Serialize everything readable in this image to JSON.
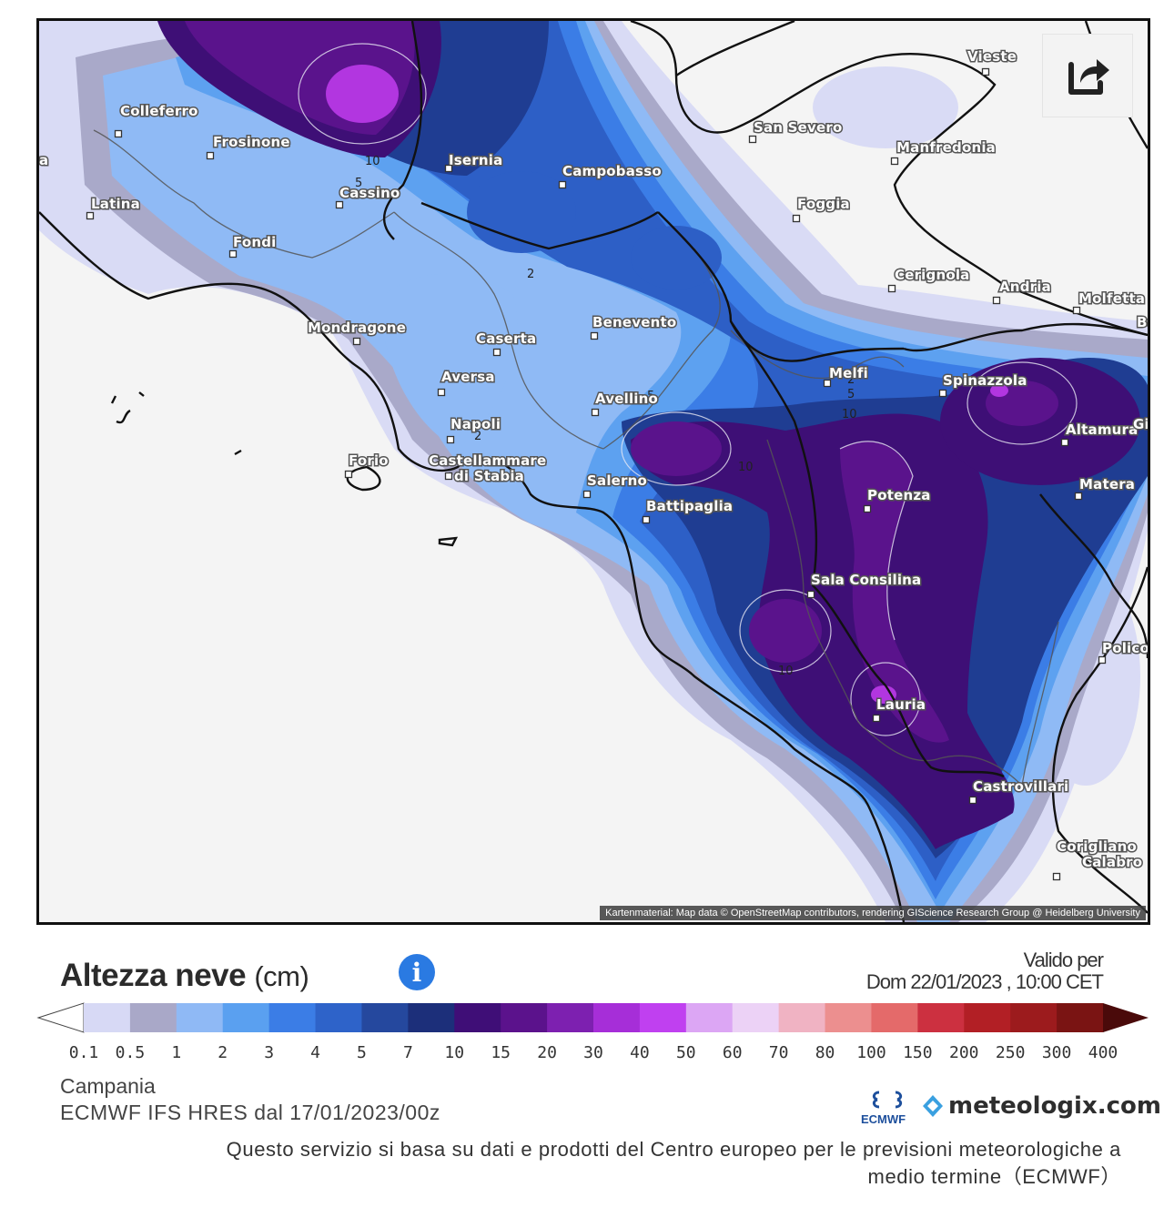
{
  "map": {
    "attribution": "Kartenmaterial: Map data © OpenStreetMap contributors, rendering GIScience Research Group @ Heidelberg University",
    "share_icon": "share-icon",
    "cities": [
      {
        "name": "Colleferro"
      },
      {
        "name": "Frosinone"
      },
      {
        "name": "Latina"
      },
      {
        "name": "Cassino"
      },
      {
        "name": "Fondi"
      },
      {
        "name": "Isernia"
      },
      {
        "name": "Campobasso"
      },
      {
        "name": "San Severo"
      },
      {
        "name": "Vieste"
      },
      {
        "name": "Manfredonia"
      },
      {
        "name": "Foggia"
      },
      {
        "name": "Cerignola"
      },
      {
        "name": "Andria"
      },
      {
        "name": "Molfetta"
      },
      {
        "name": "Mondragone"
      },
      {
        "name": "Caserta"
      },
      {
        "name": "Benevento"
      },
      {
        "name": "Aversa"
      },
      {
        "name": "Avellino"
      },
      {
        "name": "Napoli"
      },
      {
        "name": "Forio"
      },
      {
        "name": "Castellammare di Stabia"
      },
      {
        "name": "Salerno"
      },
      {
        "name": "Battipaglia"
      },
      {
        "name": "Melfi"
      },
      {
        "name": "Spinazzola"
      },
      {
        "name": "Altamura"
      },
      {
        "name": "Matera"
      },
      {
        "name": "Potenza"
      },
      {
        "name": "Sala Consilina"
      },
      {
        "name": "Policoro"
      },
      {
        "name": "Lauria"
      },
      {
        "name": "Castrovillari"
      },
      {
        "name": "Corigliano Calabro"
      }
    ],
    "contour_labels": [
      "10",
      "5",
      "2",
      "5",
      "2",
      "2",
      "5",
      "10",
      "10",
      "10"
    ],
    "edge_fragments": [
      "Ba",
      "Gi",
      "a"
    ]
  },
  "legend": {
    "title": "Altezza neve",
    "unit": "(cm)",
    "info_icon": "info-icon",
    "valid_label": "Valido per",
    "valid_date": "Dom 22/01/2023 , 10:00 CET",
    "ticks": [
      "0.1",
      "0.5",
      "1",
      "2",
      "3",
      "4",
      "5",
      "7",
      "10",
      "15",
      "20",
      "30",
      "40",
      "50",
      "60",
      "70",
      "80",
      "100",
      "150",
      "200",
      "250",
      "300",
      "400"
    ],
    "colors": [
      "#d7d9f5",
      "#a9a8c8",
      "#8fb9f5",
      "#5aa0f0",
      "#3b7de6",
      "#2e63c9",
      "#25489e",
      "#1c2f7a",
      "#3f0e77",
      "#5b128c",
      "#7d20b0",
      "#a62ed8",
      "#c040f0",
      "#dca6f4",
      "#ecd2f6",
      "#f0b3c3",
      "#ec8f8f",
      "#e46a6a",
      "#cc3040",
      "#b21f25",
      "#9c1b1d",
      "#7a1413"
    ],
    "region": "Campania",
    "model": "ECMWF IFS HRES dal 17/01/2023/00z",
    "ecmwf_logo_text": "ECMWF",
    "brand": "meteologix.com",
    "disclaimer_line1": "Questo servizio si basa su dati e prodotti del Centro europeo per le previsioni meteorologiche a",
    "disclaimer_line2": "medio termine（ECMWF）"
  }
}
